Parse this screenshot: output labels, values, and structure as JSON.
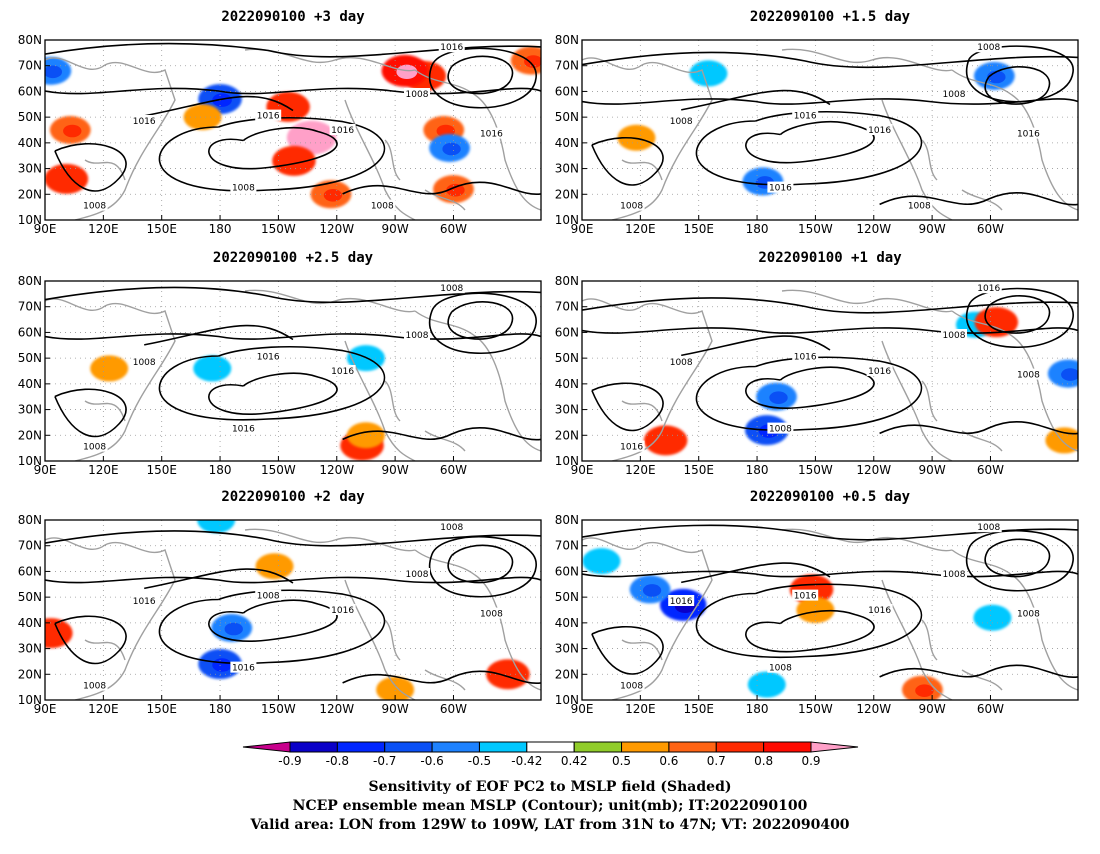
{
  "panels": [
    {
      "title": "2022090100 +3 day",
      "contour_labels": [
        "1016",
        "1008",
        "1016",
        "1008",
        "1016",
        "1016",
        "1008",
        "1016",
        "1008"
      ],
      "shading": [
        {
          "lon": 340,
          "lat": 72,
          "v": 0.6
        },
        {
          "lon": 285,
          "lat": 66,
          "v": 0.7
        },
        {
          "lon": 275,
          "lat": 68,
          "v": 0.8
        },
        {
          "lon": 93,
          "lat": 68,
          "v": -0.6
        },
        {
          "lon": 103,
          "lat": 45,
          "v": 0.6
        },
        {
          "lon": 101,
          "lat": 26,
          "v": 0.7
        },
        {
          "lon": 180,
          "lat": 57,
          "v": -0.7
        },
        {
          "lon": 171,
          "lat": 50,
          "v": 0.5
        },
        {
          "lon": 215,
          "lat": 54,
          "v": 0.7
        },
        {
          "lon": 227,
          "lat": 42,
          "v": 0.9
        },
        {
          "lon": 218,
          "lat": 33,
          "v": 0.7
        },
        {
          "lon": 237,
          "lat": 20,
          "v": 0.6
        },
        {
          "lon": 295,
          "lat": 45,
          "v": 0.6
        },
        {
          "lon": 298,
          "lat": 38,
          "v": -0.6
        },
        {
          "lon": 300,
          "lat": 22,
          "v": 0.6
        }
      ]
    },
    {
      "title": "2022090100 +1.5 day",
      "contour_labels": [
        "1008",
        "1008",
        "1008",
        "1016",
        "1016",
        "1016",
        "1008",
        "1016",
        "1008"
      ],
      "shading": [
        {
          "lon": 118,
          "lat": 42,
          "v": 0.5
        },
        {
          "lon": 183,
          "lat": 25,
          "v": -0.6
        },
        {
          "lon": 302,
          "lat": 66,
          "v": -0.6
        },
        {
          "lon": 155,
          "lat": 67,
          "v": -0.5
        }
      ]
    },
    {
      "title": "2022090100 +2.5 day",
      "contour_labels": [
        "1008",
        "1008",
        "1008",
        "1016",
        "1016",
        "1016",
        "1008"
      ],
      "shading": [
        {
          "lon": 176,
          "lat": 46,
          "v": -0.5
        },
        {
          "lon": 255,
          "lat": 50,
          "v": -0.5
        },
        {
          "lon": 253,
          "lat": 16,
          "v": 0.7
        },
        {
          "lon": 255,
          "lat": 20,
          "v": 0.5
        },
        {
          "lon": 123,
          "lat": 46,
          "v": 0.5
        }
      ]
    },
    {
      "title": "2022090100 +1 day",
      "contour_labels": [
        "1016",
        "1008",
        "1008",
        "1008",
        "1016",
        "1016",
        "1016",
        "1008"
      ],
      "shading": [
        {
          "lon": 185,
          "lat": 22,
          "v": -0.7
        },
        {
          "lon": 190,
          "lat": 35,
          "v": -0.6
        },
        {
          "lon": 133,
          "lat": 18,
          "v": 0.7
        },
        {
          "lon": 292,
          "lat": 63,
          "v": -0.5
        },
        {
          "lon": 303,
          "lat": 64,
          "v": 0.7
        },
        {
          "lon": 340,
          "lat": 44,
          "v": -0.6
        },
        {
          "lon": 338,
          "lat": 18,
          "v": 0.5
        }
      ]
    },
    {
      "title": "2022090100 +2 day",
      "contour_labels": [
        "1008",
        "1008",
        "1016",
        "1016",
        "1008",
        "1016",
        "1008",
        "1008"
      ],
      "shading": [
        {
          "lon": 180,
          "lat": 24,
          "v": -0.7
        },
        {
          "lon": 186,
          "lat": 38,
          "v": -0.6
        },
        {
          "lon": 208,
          "lat": 62,
          "v": 0.5
        },
        {
          "lon": 93,
          "lat": 36,
          "v": 0.7
        },
        {
          "lon": 328,
          "lat": 20,
          "v": 0.7
        },
        {
          "lon": 178,
          "lat": 80,
          "v": -0.5
        },
        {
          "lon": 270,
          "lat": 14,
          "v": 0.5
        }
      ]
    },
    {
      "title": "2022090100 +0.5 day",
      "contour_labels": [
        "1008",
        "1008",
        "1016",
        "1008",
        "1016",
        "1016",
        "1008",
        "1008"
      ],
      "shading": [
        {
          "lon": 142,
          "lat": 47,
          "v": -0.8
        },
        {
          "lon": 125,
          "lat": 53,
          "v": -0.6
        },
        {
          "lon": 208,
          "lat": 53,
          "v": 0.7
        },
        {
          "lon": 210,
          "lat": 45,
          "v": 0.5
        },
        {
          "lon": 100,
          "lat": 64,
          "v": -0.5
        },
        {
          "lon": 185,
          "lat": 16,
          "v": -0.5
        },
        {
          "lon": 265,
          "lat": 14,
          "v": 0.6
        },
        {
          "lon": 301,
          "lat": 42,
          "v": -0.5
        }
      ]
    }
  ],
  "axes": {
    "lon_ticks": [
      "90E",
      "120E",
      "150E",
      "180",
      "150W",
      "120W",
      "90W",
      "60W"
    ],
    "lat_ticks": [
      "80N",
      "70N",
      "60N",
      "50N",
      "40N",
      "30N",
      "20N",
      "10N"
    ]
  },
  "colorbar": {
    "labels": [
      "-0.9",
      "-0.8",
      "-0.7",
      "-0.6",
      "-0.5",
      "-0.42",
      "0.42",
      "0.5",
      "0.6",
      "0.7",
      "0.8",
      "0.9"
    ],
    "colors": [
      "#c8008c",
      "#0a00c8",
      "#0026ff",
      "#0a50f5",
      "#1e82ff",
      "#00c8ff",
      "#ffffff",
      "#90cc2a",
      "#ff9a00",
      "#ff6414",
      "#ff2a00",
      "#ff0a00",
      "#ffa0c8"
    ]
  },
  "caption": {
    "line1": "Sensitivity of EOF PC2 to MSLP field (Shaded)",
    "line2": "NCEP ensemble mean MSLP (Contour); unit(mb); IT:2022090100",
    "line3": "Valid area: LON from 129W to 109W, LAT from 31N to 47N; VT: 2022090400"
  }
}
